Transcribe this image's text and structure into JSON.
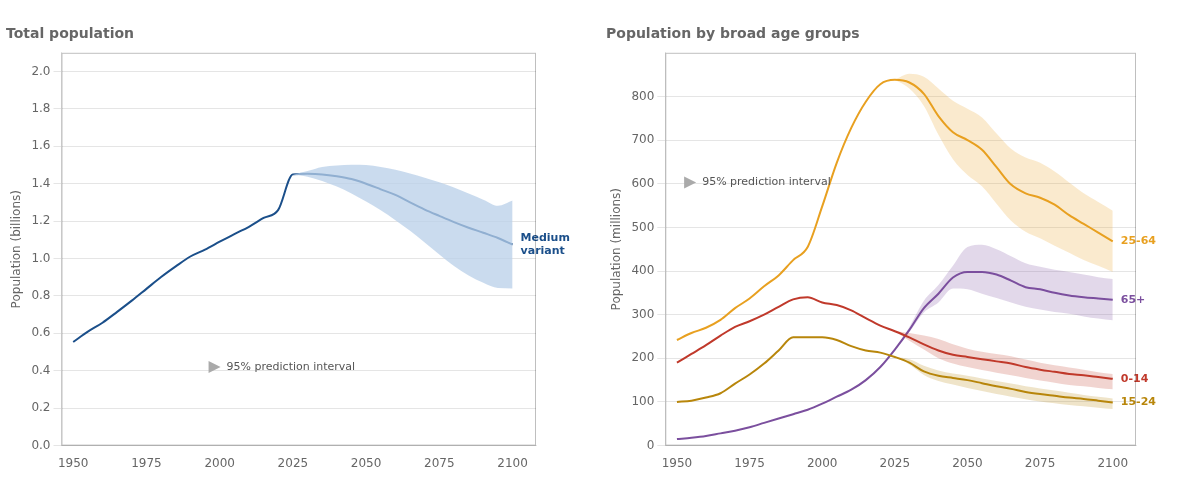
{
  "chart_data": [
    {
      "type": "line",
      "title": "Total population",
      "y_label": "Population (billions)",
      "x": [
        1950,
        1955,
        1960,
        1965,
        1970,
        1975,
        1980,
        1985,
        1990,
        1995,
        2000,
        2005,
        2010,
        2015,
        2020,
        2025,
        2030,
        2035,
        2040,
        2045,
        2050,
        2055,
        2060,
        2065,
        2070,
        2075,
        2080,
        2085,
        2090,
        2095,
        2100
      ],
      "xlim": [
        1946,
        2108
      ],
      "xticks": [
        1950,
        1975,
        2000,
        2025,
        2050,
        2075,
        2100
      ],
      "ylim": [
        0.0,
        2.1
      ],
      "yticks": [
        {
          "value": 0.0,
          "label": "0.0"
        },
        0.2,
        0.4,
        0.6,
        0.8,
        {
          "value": 1.0,
          "label": "1.0"
        },
        1.2,
        1.4,
        1.6,
        1.8,
        {
          "value": 2.0,
          "label": "2.0"
        }
      ],
      "grid": true,
      "series": [
        {
          "name": "Medium\nvariant",
          "color": "#1b4f8a",
          "values": [
            0.554,
            0.609,
            0.657,
            0.715,
            0.775,
            0.838,
            0.901,
            0.958,
            1.011,
            1.048,
            1.09,
            1.131,
            1.17,
            1.217,
            1.26,
            1.45,
            1.453,
            1.45,
            1.44,
            1.425,
            1.4,
            1.37,
            1.34,
            1.3,
            1.262,
            1.228,
            1.195,
            1.165,
            1.138,
            1.11,
            1.075
          ],
          "band": {
            "color": "#b8cfe8",
            "x": [
              2025,
              2030,
              2035,
              2040,
              2045,
              2050,
              2055,
              2060,
              2065,
              2070,
              2075,
              2080,
              2085,
              2090,
              2095,
              2100
            ],
            "upper": [
              1.45,
              1.468,
              1.49,
              1.498,
              1.502,
              1.5,
              1.49,
              1.475,
              1.455,
              1.432,
              1.408,
              1.38,
              1.348,
              1.315,
              1.282,
              1.31
            ],
            "lower": [
              1.45,
              1.438,
              1.415,
              1.385,
              1.348,
              1.305,
              1.258,
              1.205,
              1.148,
              1.086,
              1.022,
              0.96,
              0.91,
              0.87,
              0.842,
              0.84
            ]
          }
        }
      ],
      "annotations": [
        "95% prediction interval"
      ]
    },
    {
      "type": "line",
      "title": "Population by broad age groups",
      "y_label": "Population (millions)",
      "x": [
        1950,
        1955,
        1960,
        1965,
        1970,
        1975,
        1980,
        1985,
        1990,
        1995,
        2000,
        2005,
        2010,
        2015,
        2020,
        2025,
        2030,
        2035,
        2040,
        2045,
        2050,
        2055,
        2060,
        2065,
        2070,
        2075,
        2080,
        2085,
        2090,
        2095,
        2100
      ],
      "xlim": [
        1946,
        2108
      ],
      "xticks": [
        1950,
        1975,
        2000,
        2025,
        2050,
        2075,
        2100
      ],
      "ylim": [
        0,
        900
      ],
      "yticks": [
        0,
        100,
        200,
        300,
        400,
        500,
        600,
        700,
        800
      ],
      "grid": true,
      "series": [
        {
          "name": "0-14",
          "color": "#c0392b",
          "values": [
            190,
            210,
            230,
            252,
            272,
            285,
            300,
            318,
            335,
            340,
            328,
            322,
            310,
            292,
            275,
            262,
            248,
            232,
            218,
            208,
            203,
            198,
            193,
            188,
            180,
            174,
            169,
            164,
            161,
            157,
            153
          ],
          "band": {
            "x": [
              2025,
              2030,
              2035,
              2040,
              2045,
              2050,
              2055,
              2060,
              2065,
              2070,
              2075,
              2080,
              2085,
              2090,
              2095,
              2100
            ],
            "upper": [
              262,
              258,
              252,
              244,
              232,
              222,
              215,
              210,
              205,
              197,
              190,
              184,
              179,
              174,
              168,
              164
            ],
            "lower": [
              262,
              240,
              220,
              200,
              188,
              180,
              173,
              167,
              161,
              155,
              149,
              144,
              139,
              136,
              132,
              129
            ]
          }
        },
        {
          "name": "15-24",
          "color": "#b8860b",
          "values": [
            100,
            103,
            110,
            120,
            142,
            163,
            188,
            218,
            248,
            248,
            248,
            242,
            228,
            218,
            213,
            203,
            190,
            170,
            160,
            155,
            150,
            143,
            136,
            130,
            123,
            118,
            114,
            110,
            107,
            103,
            99
          ],
          "band": {
            "x": [
              2025,
              2030,
              2035,
              2040,
              2045,
              2050,
              2055,
              2060,
              2065,
              2070,
              2075,
              2080,
              2085,
              2090,
              2095,
              2100
            ],
            "upper": [
              203,
              198,
              183,
              172,
              165,
              160,
              154,
              148,
              142,
              136,
              131,
              126,
              121,
              116,
              112,
              108
            ],
            "lower": [
              203,
              186,
              162,
              148,
              140,
              132,
              125,
              118,
              112,
              106,
              101,
              97,
              93,
              90,
              87,
              84
            ]
          }
        },
        {
          "name": "25-64",
          "color": "#e8a020",
          "values": [
            242,
            258,
            270,
            288,
            315,
            337,
            365,
            390,
            425,
            455,
            548,
            648,
            728,
            788,
            828,
            838,
            832,
            806,
            755,
            718,
            700,
            678,
            638,
            598,
            578,
            568,
            552,
            528,
            508,
            488,
            468
          ],
          "band": {
            "x": [
              2025,
              2030,
              2035,
              2040,
              2045,
              2050,
              2055,
              2060,
              2065,
              2070,
              2075,
              2080,
              2085,
              2090,
              2095,
              2100
            ],
            "upper": [
              838,
              852,
              845,
              818,
              790,
              772,
              752,
              715,
              680,
              660,
              648,
              628,
              603,
              578,
              558,
              538
            ],
            "lower": [
              838,
              818,
              778,
              712,
              656,
              620,
              594,
              554,
              515,
              490,
              475,
              458,
              442,
              425,
              412,
              398
            ]
          }
        },
        {
          "name": "65+",
          "color": "#7b4f9e",
          "values": [
            15,
            18,
            22,
            28,
            34,
            42,
            52,
            62,
            72,
            82,
            96,
            112,
            128,
            150,
            180,
            220,
            265,
            315,
            348,
            385,
            398,
            398,
            392,
            378,
            363,
            358,
            350,
            344,
            340,
            337,
            334
          ],
          "band": {
            "x": [
              2025,
              2030,
              2035,
              2040,
              2045,
              2050,
              2055,
              2060,
              2065,
              2070,
              2075,
              2080,
              2085,
              2090,
              2095,
              2100
            ],
            "upper": [
              220,
              272,
              332,
              368,
              412,
              455,
              460,
              450,
              434,
              418,
              410,
              403,
              398,
              392,
              386,
              382
            ],
            "lower": [
              220,
              260,
              305,
              328,
              360,
              358,
              348,
              338,
              328,
              318,
              312,
              306,
              302,
              296,
              291,
              287
            ]
          }
        }
      ],
      "annotations": [
        "95% prediction interval"
      ]
    }
  ]
}
